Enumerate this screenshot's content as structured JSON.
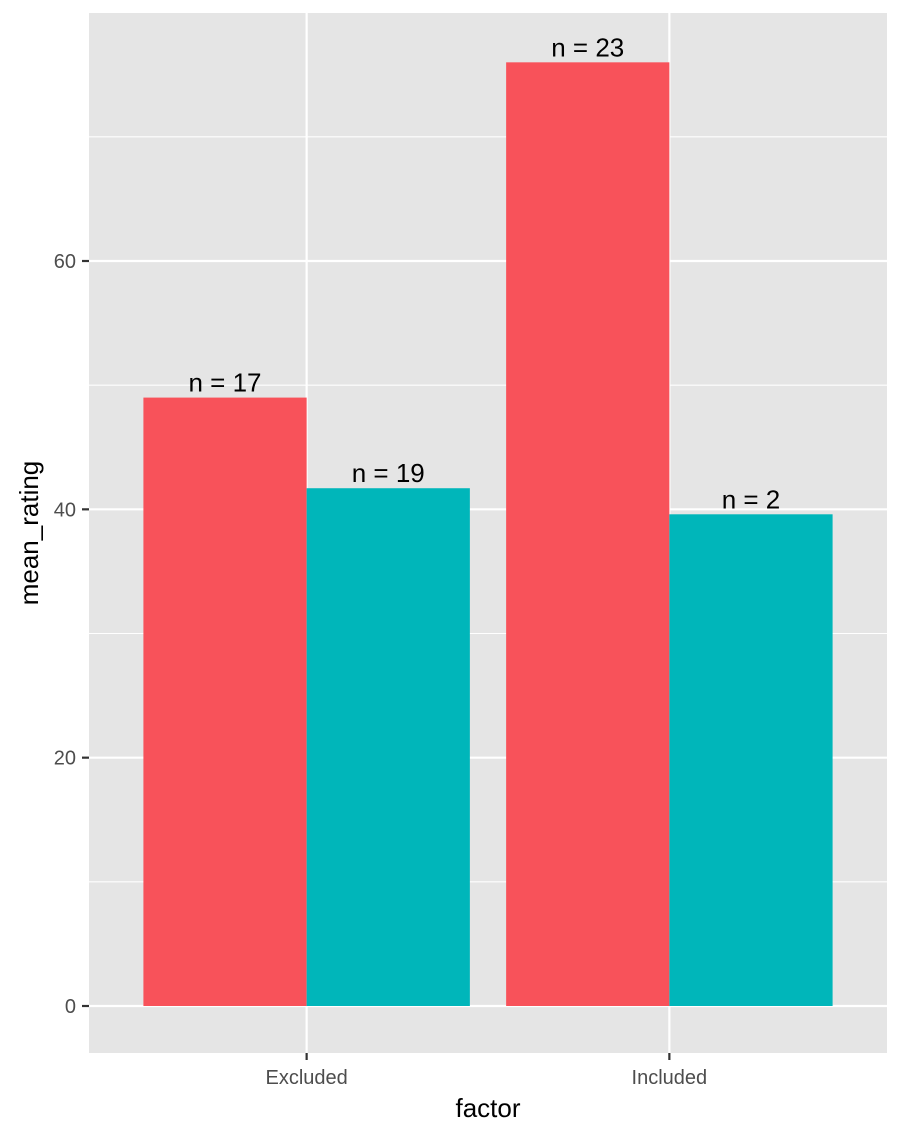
{
  "chart_data": {
    "type": "bar",
    "xlabel": "factor",
    "ylabel": "mean_rating",
    "categories": [
      "Excluded",
      "Included"
    ],
    "series": [
      {
        "color": "#F8525A",
        "values": [
          49,
          76
        ],
        "labels": [
          "n = 17",
          "n = 23"
        ]
      },
      {
        "color": "#00B6BA",
        "values": [
          41.7,
          39.6
        ],
        "labels": [
          "n = 19",
          "n = 2"
        ]
      }
    ],
    "ylim": [
      -3.8,
      80
    ],
    "yticks": [
      0,
      20,
      40,
      60
    ],
    "grid": true,
    "legend": "none",
    "panel_background": "#E5E5E5",
    "grid_color": "#FFFFFF"
  }
}
